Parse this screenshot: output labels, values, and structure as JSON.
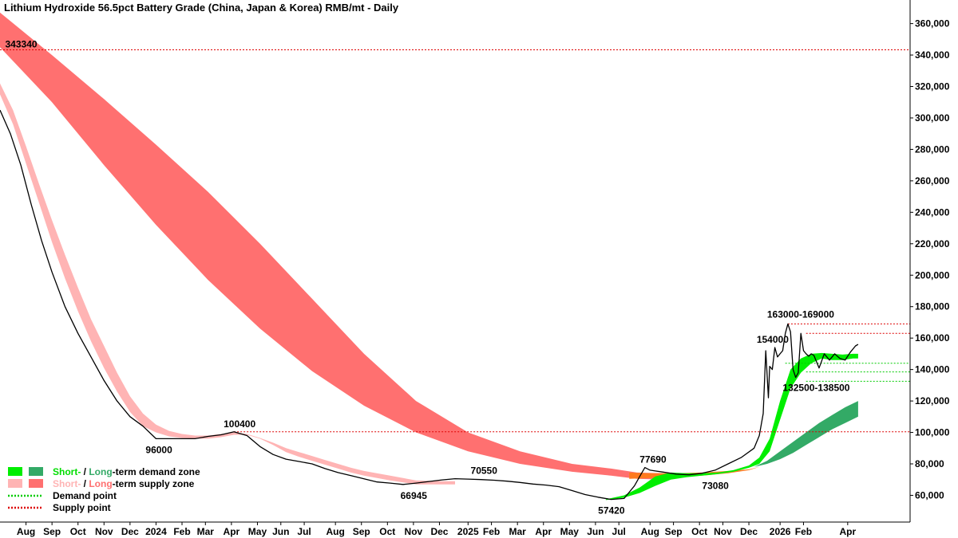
{
  "chart_data": {
    "type": "line",
    "title": "Lithium Hydroxide 56.5pct Battery Grade (China, Japan & Korea) RMB/mt - Daily",
    "y_range": [
      43000,
      375000
    ],
    "y_ticks": [
      "60,000",
      "80,000",
      "100,000",
      "120,000",
      "140,000",
      "160,000",
      "180,000",
      "200,000",
      "220,000",
      "240,000",
      "260,000",
      "280,000",
      "300,000",
      "320,000",
      "340,000",
      "360,000"
    ],
    "y_tick_values": [
      60000,
      80000,
      100000,
      120000,
      140000,
      160000,
      180000,
      200000,
      220000,
      240000,
      260000,
      280000,
      300000,
      320000,
      340000,
      360000
    ],
    "x_range": [
      0,
      35.0
    ],
    "x_ticks": [
      {
        "m": 1.0,
        "label": "Aug"
      },
      {
        "m": 2.0,
        "label": "Sep"
      },
      {
        "m": 3.0,
        "label": "Oct"
      },
      {
        "m": 4.0,
        "label": "Nov"
      },
      {
        "m": 5.0,
        "label": "Dec"
      },
      {
        "m": 6.0,
        "label": "2024"
      },
      {
        "m": 7.0,
        "label": "Feb"
      },
      {
        "m": 7.9,
        "label": "Mar"
      },
      {
        "m": 8.9,
        "label": "Apr"
      },
      {
        "m": 9.9,
        "label": "May"
      },
      {
        "m": 10.8,
        "label": "Jun"
      },
      {
        "m": 11.7,
        "label": "Jul"
      },
      {
        "m": 12.9,
        "label": "Aug"
      },
      {
        "m": 13.9,
        "label": "Sep"
      },
      {
        "m": 14.9,
        "label": "Oct"
      },
      {
        "m": 15.9,
        "label": "Nov"
      },
      {
        "m": 16.9,
        "label": "Dec"
      },
      {
        "m": 18.0,
        "label": "2025"
      },
      {
        "m": 18.9,
        "label": "Feb"
      },
      {
        "m": 19.9,
        "label": "Mar"
      },
      {
        "m": 20.9,
        "label": "Apr"
      },
      {
        "m": 21.9,
        "label": "May"
      },
      {
        "m": 22.9,
        "label": "Jun"
      },
      {
        "m": 23.8,
        "label": "Jul"
      },
      {
        "m": 25.0,
        "label": "Aug"
      },
      {
        "m": 25.9,
        "label": "Sep"
      },
      {
        "m": 26.9,
        "label": "Oct"
      },
      {
        "m": 27.8,
        "label": "Nov"
      },
      {
        "m": 28.8,
        "label": "Dec"
      },
      {
        "m": 30.0,
        "label": "2026"
      },
      {
        "m": 30.9,
        "label": "Feb"
      },
      {
        "m": 32.6,
        "label": "Apr"
      }
    ],
    "price": {
      "x": [
        0,
        0.4,
        0.8,
        1.2,
        1.6,
        2.0,
        2.5,
        3.0,
        3.5,
        4.0,
        4.5,
        5.0,
        5.5,
        6.0,
        6.5,
        7.0,
        7.5,
        8.0,
        8.5,
        9.0,
        9.5,
        10.0,
        10.5,
        11.0,
        11.5,
        12.0,
        12.5,
        13.0,
        13.5,
        14.0,
        14.5,
        15.0,
        15.5,
        16.0,
        16.5,
        17.0,
        17.5,
        18.0,
        18.5,
        19.0,
        19.5,
        20.0,
        20.5,
        21.0,
        21.5,
        22.0,
        22.5,
        23.0,
        23.5,
        24.0,
        24.2,
        24.4,
        24.6,
        24.8,
        25.0,
        25.2,
        25.5,
        26.0,
        26.5,
        27.0,
        27.5,
        28.0,
        28.5,
        29.0,
        29.2,
        29.35,
        29.45,
        29.55,
        29.6,
        29.7,
        29.8,
        29.9,
        30.0,
        30.1,
        30.2,
        30.3,
        30.4,
        30.5,
        30.6,
        30.7,
        30.8,
        30.9,
        31.0,
        31.1,
        31.2,
        31.3,
        31.5,
        31.7,
        31.9,
        32.1,
        32.3,
        32.5,
        32.7,
        32.9,
        33.0
      ],
      "y": [
        305000,
        290000,
        270000,
        245000,
        222000,
        202000,
        180000,
        163000,
        148000,
        133000,
        120000,
        110000,
        104000,
        96000,
        96000,
        96000,
        96000,
        97500,
        98500,
        100400,
        98000,
        91000,
        86000,
        83000,
        81500,
        80000,
        77000,
        74500,
        72500,
        70500,
        68500,
        67800,
        66945,
        67800,
        68800,
        69800,
        70550,
        70300,
        70000,
        69600,
        69000,
        68200,
        67200,
        66500,
        65500,
        63000,
        60500,
        58800,
        57420,
        58000,
        62000,
        66000,
        72000,
        77690,
        76000,
        75500,
        74800,
        73500,
        73080,
        74000,
        76000,
        80000,
        84000,
        90000,
        98000,
        112000,
        152000,
        122000,
        142000,
        140000,
        154000,
        148000,
        150000,
        152000,
        163000,
        169000,
        164000,
        140000,
        135000,
        138000,
        163000,
        152000,
        150000,
        148500,
        150000,
        149000,
        141000,
        150000,
        146000,
        150000,
        147000,
        146000,
        151000,
        155000,
        156000
      ],
      "color": "#000000"
    },
    "long_supply_zone": {
      "x": [
        0,
        2,
        4,
        6,
        8,
        10,
        12,
        14,
        16,
        18,
        20,
        22,
        23.5,
        24.5,
        25.5
      ],
      "upper": [
        367000,
        340000,
        312000,
        283000,
        253000,
        220000,
        185000,
        150000,
        120000,
        100000,
        88000,
        80000,
        77000,
        74500,
        74000
      ],
      "lower": [
        345000,
        310000,
        270000,
        232000,
        197000,
        166000,
        139000,
        117000,
        100000,
        88000,
        80000,
        75000,
        72500,
        70500,
        70000
      ],
      "color": "#ff7070"
    },
    "short_supply_zone": {
      "x": [
        0,
        0.5,
        1,
        1.5,
        2,
        2.5,
        3,
        3.5,
        4,
        4.5,
        5,
        5.5,
        6,
        6.5,
        7,
        7.5,
        8,
        8.5,
        9,
        9.5,
        10,
        10.5,
        11,
        11.5,
        12,
        12.5,
        13,
        13.5,
        14,
        15,
        16,
        17,
        17.5
      ],
      "upper": [
        322000,
        305000,
        282000,
        258000,
        235000,
        213000,
        192000,
        172000,
        155000,
        138000,
        123000,
        112000,
        105000,
        101000,
        99000,
        98000,
        98000,
        99000,
        100000,
        99000,
        96500,
        93500,
        90000,
        87500,
        85000,
        82500,
        80000,
        77500,
        75500,
        72500,
        69500,
        69000,
        69000
      ],
      "lower": [
        315000,
        296000,
        271000,
        246000,
        221000,
        198000,
        177000,
        158000,
        141000,
        126000,
        113000,
        104000,
        100000,
        97500,
        96500,
        96000,
        96000,
        97000,
        98500,
        98500,
        96000,
        92000,
        87500,
        84500,
        82000,
        79500,
        77000,
        74500,
        72500,
        69500,
        67000,
        67000,
        67000
      ],
      "color": "#ffb4b4"
    },
    "short_zone_recent": {
      "x": [
        23.3,
        24.0,
        24.6,
        25.2,
        25.8,
        26.4,
        27.0,
        27.6,
        28.2,
        28.8,
        29.2,
        29.6,
        30.0,
        30.4,
        30.8,
        31.2,
        31.6,
        32.0,
        32.4,
        32.8,
        33.0
      ],
      "upper": [
        57500,
        60000,
        65000,
        72000,
        74500,
        74000,
        74000,
        74500,
        76000,
        79000,
        84000,
        96000,
        120000,
        140000,
        147000,
        150000,
        150500,
        150000,
        149500,
        150000,
        150000
      ],
      "lower": [
        57000,
        58500,
        61500,
        66000,
        70000,
        71500,
        72500,
        73500,
        75000,
        77500,
        80000,
        88000,
        108000,
        128000,
        138000,
        144000,
        147000,
        146000,
        146000,
        147000,
        147000
      ],
      "demand_color": "#00ee00",
      "supply_color": "#ff7a1f"
    },
    "long_demand_zone": {
      "x": [
        29.0,
        29.5,
        30.0,
        30.5,
        31.0,
        31.5,
        32.0,
        32.5,
        33.0
      ],
      "upper": [
        78000,
        82000,
        88000,
        94000,
        100000,
        106000,
        111000,
        116000,
        120000
      ],
      "lower": [
        78000,
        80000,
        83000,
        87000,
        92000,
        97000,
        102000,
        106000,
        110000
      ],
      "color": "#33aa66"
    },
    "long_supply_recent": {
      "x": [
        24.2,
        25.0,
        26.0,
        27.0,
        28.0,
        28.8,
        29.2
      ],
      "upper": [
        74500,
        74000,
        74000,
        74500,
        75500,
        76500,
        78000
      ],
      "lower": [
        70500,
        71000,
        71500,
        72500,
        74000,
        76000,
        78000
      ],
      "color": "#ff7a1f"
    },
    "supply_points": [
      {
        "y": 343340,
        "x0": 0,
        "x1": 35.0
      },
      {
        "y": 100400,
        "x0": 9.0,
        "x1": 35.0
      },
      {
        "y": 169000,
        "x0": 30.3,
        "x1": 35.0
      },
      {
        "y": 163000,
        "x0": 31.0,
        "x1": 35.0
      }
    ],
    "demand_points": [
      {
        "y": 144000,
        "x0": 30.2,
        "x1": 35.0
      },
      {
        "y": 138500,
        "x0": 31.0,
        "x1": 35.0
      },
      {
        "y": 132500,
        "x0": 31.0,
        "x1": 35.0
      }
    ],
    "annotations": [
      {
        "text": "343340",
        "x": 0.2,
        "y": 343340,
        "dy": -3
      },
      {
        "text": "96000",
        "x": 5.6,
        "y": 96000,
        "dy": 18
      },
      {
        "text": "100400",
        "x": 8.6,
        "y": 100400,
        "dy": -6
      },
      {
        "text": "66945",
        "x": 15.4,
        "y": 66945,
        "dy": 18
      },
      {
        "text": "70550",
        "x": 18.1,
        "y": 70550,
        "dy": -6
      },
      {
        "text": "57420",
        "x": 23.0,
        "y": 57420,
        "dy": 18
      },
      {
        "text": "77690",
        "x": 24.6,
        "y": 77690,
        "dy": -6
      },
      {
        "text": "73080",
        "x": 27.0,
        "y": 73080,
        "dy": 18
      },
      {
        "text": "154000",
        "x": 29.1,
        "y": 154000,
        "dy": -6
      },
      {
        "text": "163000-169000",
        "x": 29.5,
        "y": 169000,
        "dy": -8
      },
      {
        "text": "132500-138500",
        "x": 30.1,
        "y": 132500,
        "dy": 12
      }
    ],
    "legend": {
      "position": "bottom-left",
      "rows": [
        {
          "swatch1": "#00ee00",
          "swatch2": "#33aa66",
          "parts": [
            {
              "t": "Short-",
              "c": "#00dd00"
            },
            {
              "t": " / ",
              "c": "#000"
            },
            {
              "t": "Long",
              "c": "#33aa66"
            },
            {
              "t": "-term demand zone",
              "c": "#000"
            }
          ]
        },
        {
          "swatch1": "#ffb4b4",
          "swatch2": "#ff7070",
          "parts": [
            {
              "t": "Short-",
              "c": "#ffb4b4"
            },
            {
              "t": " / ",
              "c": "#000"
            },
            {
              "t": "Long",
              "c": "#ff7070"
            },
            {
              "t": "-term supply zone",
              "c": "#000"
            }
          ]
        },
        {
          "dotted": "#00cc00",
          "parts": [
            {
              "t": "Demand point",
              "c": "#000"
            }
          ]
        },
        {
          "dotted": "#dd0000",
          "parts": [
            {
              "t": "Supply point",
              "c": "#000"
            }
          ]
        }
      ]
    }
  }
}
